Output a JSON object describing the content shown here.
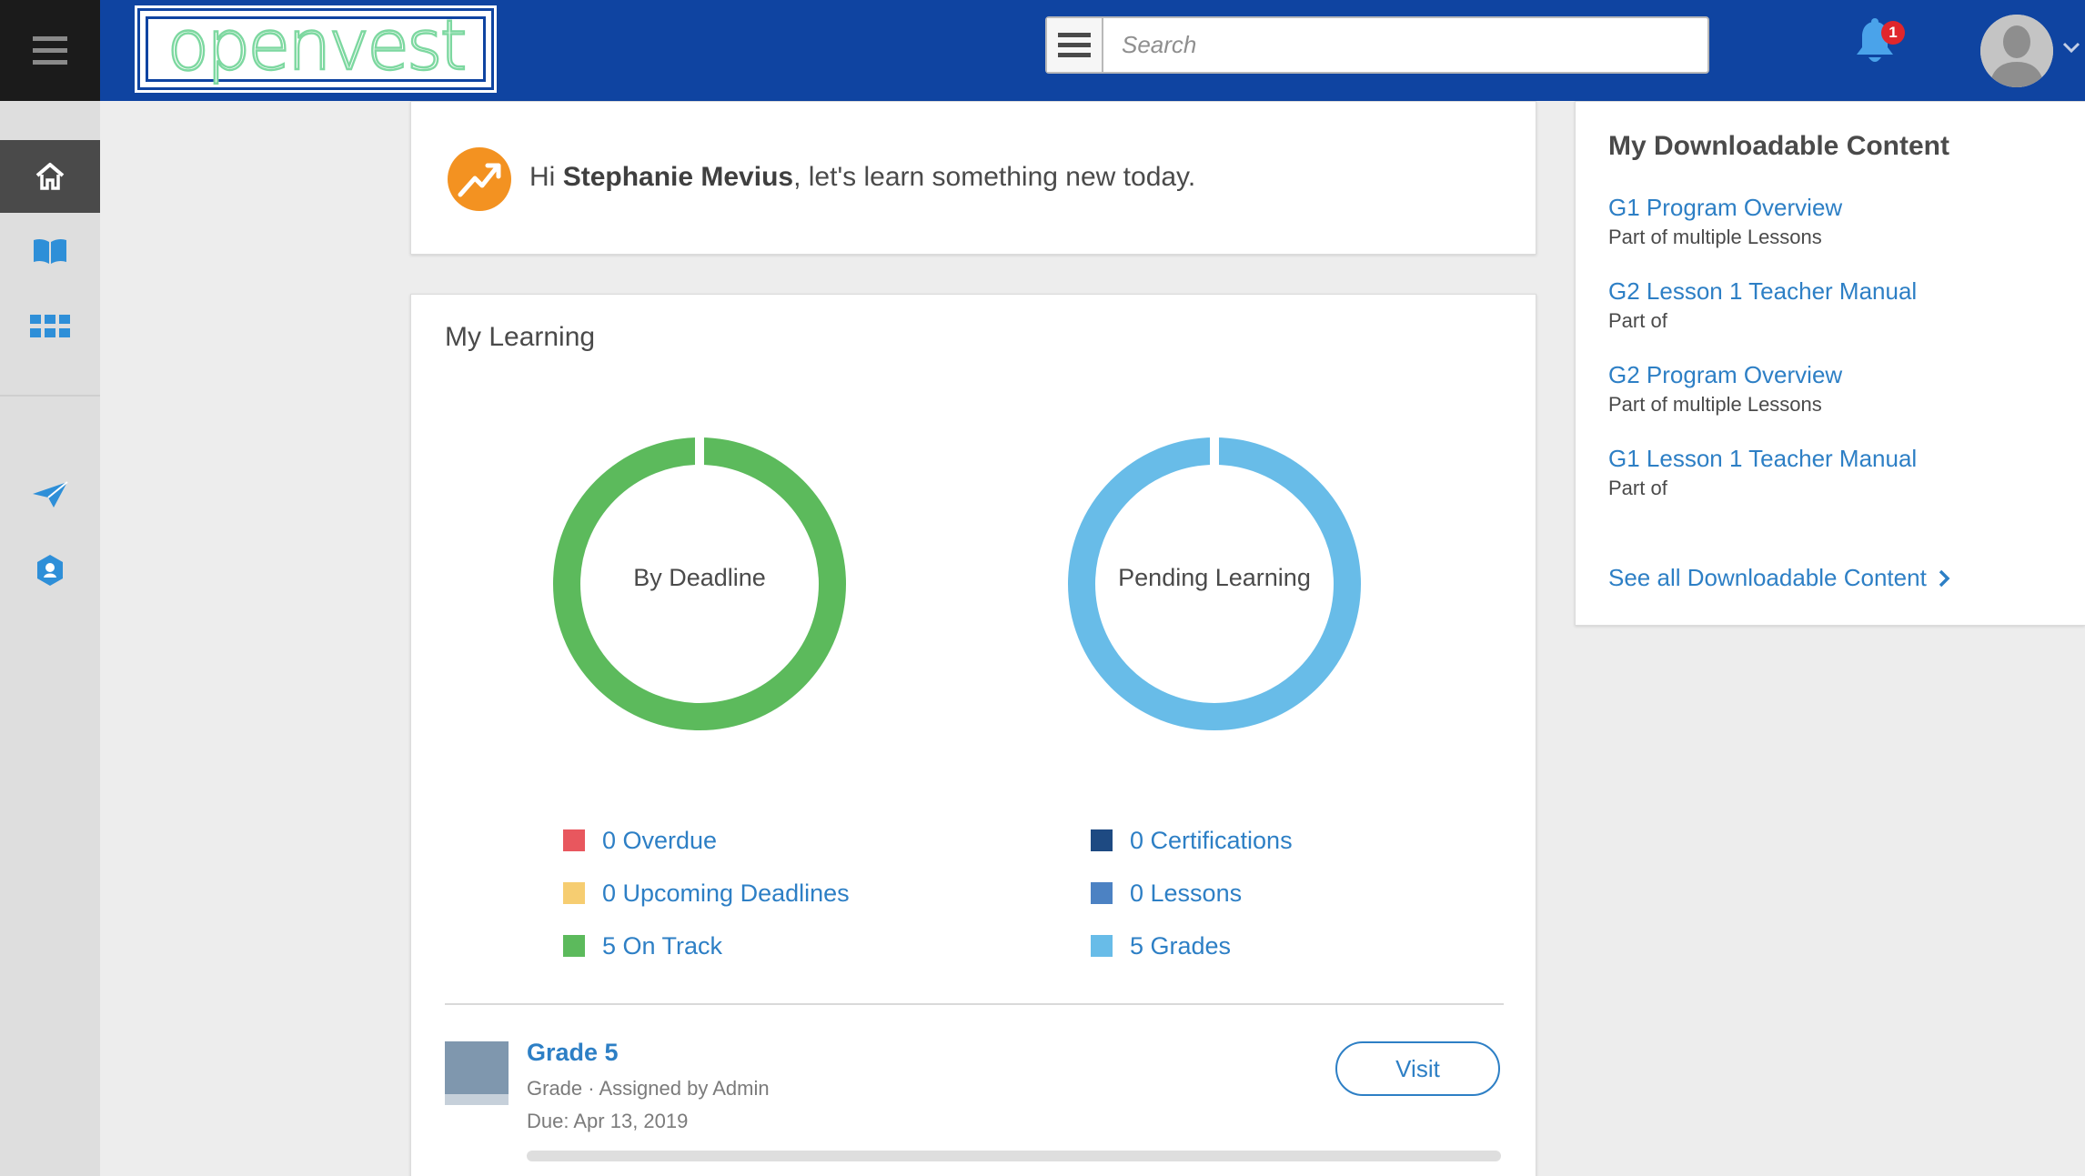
{
  "topbar": {
    "logo_text": "openvest",
    "search_placeholder": "Search",
    "notification_count": "1",
    "color": "#0f44a1"
  },
  "sidebar": {
    "items": [
      {
        "icon": "home-icon",
        "active": true
      },
      {
        "icon": "book-icon",
        "active": false
      },
      {
        "icon": "grid-icon",
        "active": false
      },
      {
        "icon": "paper-plane-icon",
        "active": false
      },
      {
        "icon": "badge-icon",
        "active": false
      }
    ]
  },
  "greeting": {
    "prefix": "Hi",
    "name": "Stephanie Mevius",
    "suffix": ", let's learn something new today."
  },
  "my_learning": {
    "title": "My Learning",
    "charts": [
      {
        "label": "By Deadline",
        "legend": [
          {
            "text": "0 Overdue",
            "color": "#e8575e",
            "value": 0
          },
          {
            "text": "0 Upcoming Deadlines",
            "color": "#f6cd71",
            "value": 0
          },
          {
            "text": "5 On Track",
            "color": "#5cba5c",
            "value": 5
          }
        ]
      },
      {
        "label": "Pending Learning",
        "legend": [
          {
            "text": "0 Certifications",
            "color": "#1e4a82",
            "value": 0
          },
          {
            "text": "0 Lessons",
            "color": "#4c82c3",
            "value": 0
          },
          {
            "text": "5 Grades",
            "color": "#68bce8",
            "value": 5
          }
        ]
      }
    ],
    "item": {
      "title": "Grade 5",
      "meta": "Grade · Assigned by Admin",
      "due": "Due: Apr 13, 2019",
      "button": "Visit",
      "progress": 0
    }
  },
  "downloads": {
    "title": "My Downloadable Content",
    "items": [
      {
        "title": "G1 Program Overview",
        "sub": "Part of multiple Lessons"
      },
      {
        "title": "G2 Lesson 1 Teacher Manual",
        "sub": "Part of"
      },
      {
        "title": "G2 Program Overview",
        "sub": "Part of multiple Lessons"
      },
      {
        "title": "G1 Lesson 1 Teacher Manual",
        "sub": "Part of"
      }
    ],
    "see_all": "See all Downloadable Content"
  }
}
